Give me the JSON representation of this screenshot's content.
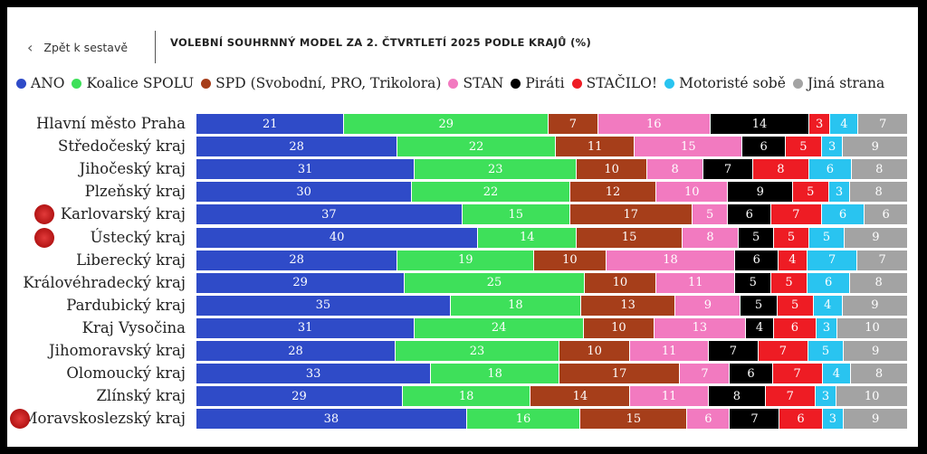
{
  "header": {
    "back_label": "Zpět k sestavě",
    "title": "VOLEBNÍ SOUHRNNÝ MODEL ZA 2. ČTVRTLETÍ 2025 PODLE KRAJŮ (%)"
  },
  "chart_data": {
    "type": "bar",
    "orientation": "horizontal-stacked",
    "unit": "%",
    "legend_position": "top",
    "grid": false,
    "categories": [
      "Hlavní město Praha",
      "Středočeský kraj",
      "Jihočeský kraj",
      "Plzeňský kraj",
      "Karlovarský kraj",
      "Ústecký kraj",
      "Liberecký kraj",
      "Královéhradecký kraj",
      "Pardubický kraj",
      "Kraj Vysočina",
      "Jihomoravský kraj",
      "Olomoucký kraj",
      "Zlínský kraj",
      "Moravskoslezský kraj"
    ],
    "series": [
      {
        "name": "ANO",
        "color": "#2f4bc8",
        "text_color": "#ffffff",
        "values": [
          21,
          28,
          31,
          30,
          37,
          40,
          28,
          29,
          35,
          31,
          28,
          33,
          29,
          38
        ]
      },
      {
        "name": "Koalice SPOLU",
        "color": "#3ee05a",
        "text_color": "#ffffff",
        "values": [
          29,
          22,
          23,
          22,
          15,
          14,
          19,
          25,
          18,
          24,
          23,
          18,
          18,
          16
        ]
      },
      {
        "name": "SPD (Svobodní, PRO, Trikolora)",
        "color": "#a63e1a",
        "text_color": "#ffffff",
        "values": [
          7,
          11,
          10,
          12,
          17,
          15,
          10,
          10,
          13,
          10,
          10,
          17,
          14,
          15
        ]
      },
      {
        "name": "STAN",
        "color": "#f27ac0",
        "text_color": "#ffffff",
        "values": [
          16,
          15,
          8,
          10,
          5,
          8,
          18,
          11,
          9,
          13,
          11,
          7,
          11,
          6
        ]
      },
      {
        "name": "Piráti",
        "color": "#000000",
        "text_color": "#ffffff",
        "values": [
          14,
          6,
          7,
          9,
          6,
          5,
          6,
          5,
          5,
          4,
          7,
          6,
          8,
          7
        ]
      },
      {
        "name": "STAČILO!",
        "color": "#ee1c24",
        "text_color": "#ffffff",
        "values": [
          3,
          5,
          8,
          5,
          7,
          5,
          4,
          5,
          5,
          6,
          7,
          7,
          7,
          6
        ]
      },
      {
        "name": "Motoristé sobě",
        "color": "#29c4f0",
        "text_color": "#ffffff",
        "values": [
          4,
          3,
          6,
          3,
          6,
          5,
          7,
          6,
          4,
          3,
          5,
          4,
          3,
          3
        ]
      },
      {
        "name": "Jiná strana",
        "color": "#a3a3a3",
        "text_color": "#ffffff",
        "values": [
          7,
          9,
          8,
          8,
          6,
          9,
          7,
          8,
          9,
          10,
          9,
          8,
          10,
          9
        ]
      }
    ],
    "highlighted_regions": [
      "Karlovarský kraj",
      "Ústecký kraj",
      "Moravskoslezský kraj"
    ]
  }
}
